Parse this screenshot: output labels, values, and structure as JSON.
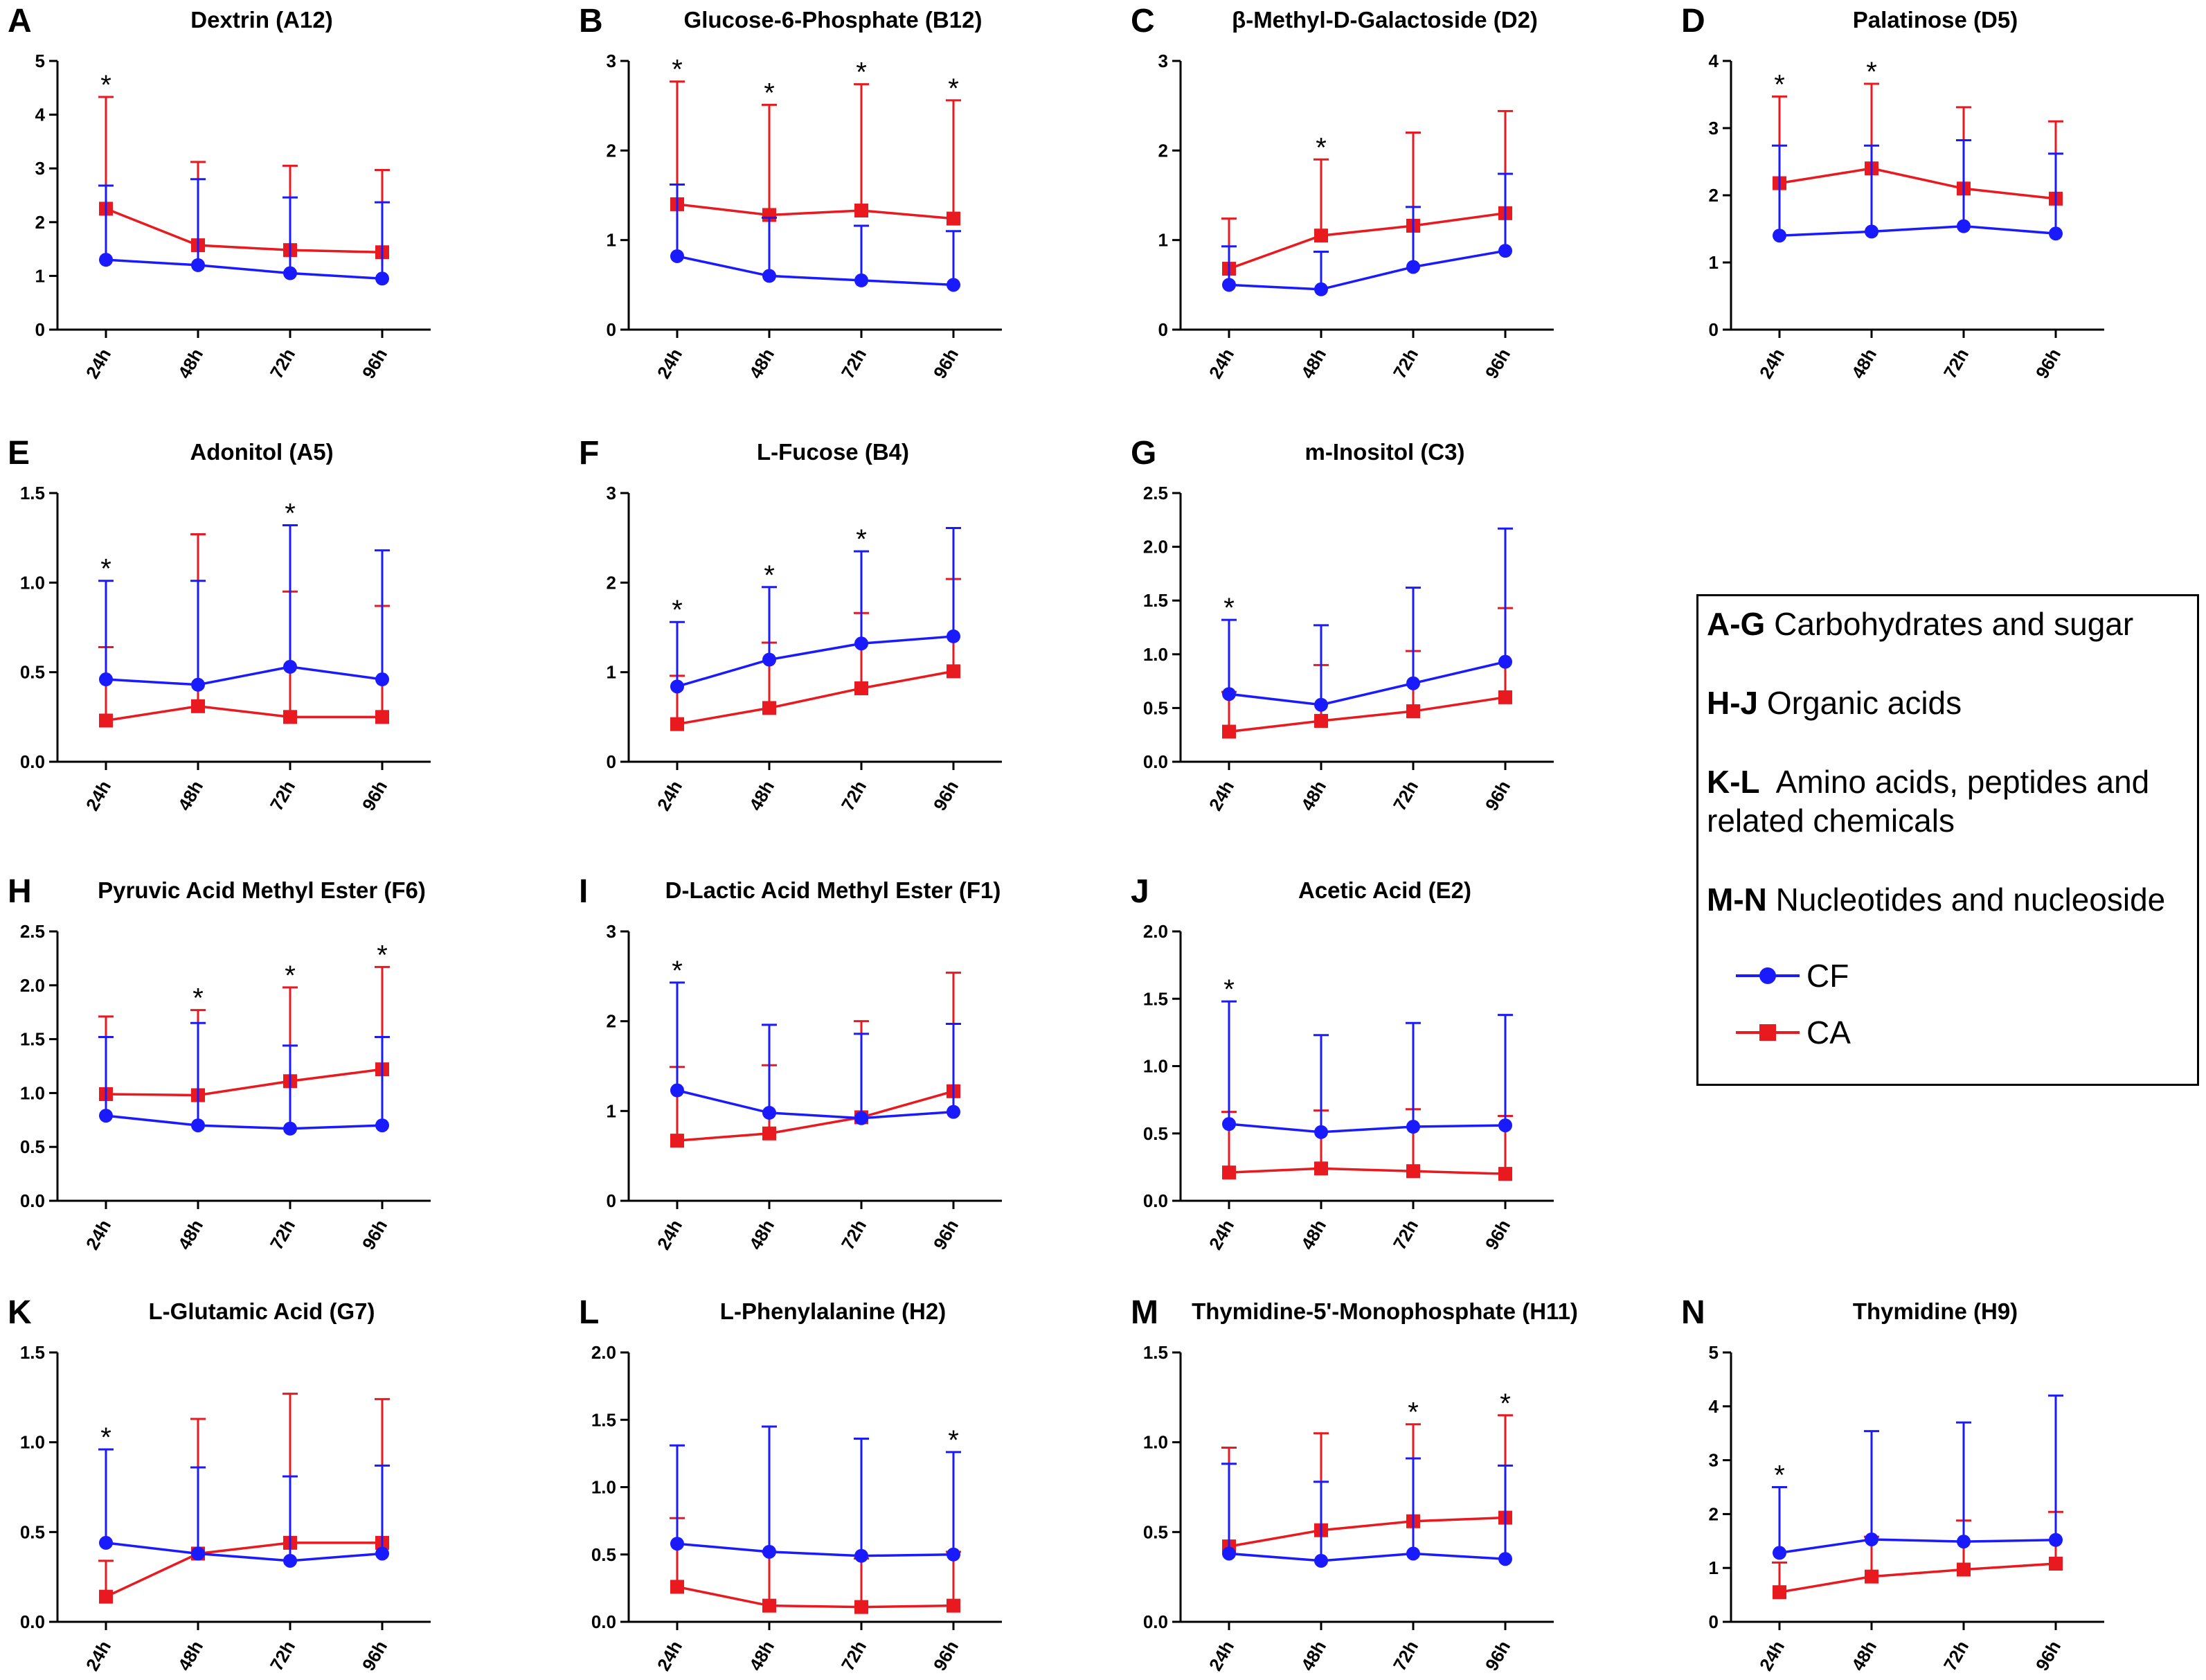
{
  "figure": {
    "x_categories": [
      "24h",
      "48h",
      "72h",
      "96h"
    ],
    "significance_marker": "*"
  },
  "legend": {
    "categories": [
      {
        "code": "A-G",
        "text": "Carbohydrates and sugar"
      },
      {
        "code": "H-J",
        "text": "Organic acids"
      },
      {
        "code": "K-L",
        "text": "Amino acids, peptides and",
        "text2": "related chemicals"
      },
      {
        "code": "M-N",
        "text": "Nucleotides and nucleoside"
      }
    ],
    "series": [
      {
        "name": "CF",
        "color": "#1a1aff",
        "marker": "circle"
      },
      {
        "name": "CA",
        "color": "#e8191f",
        "marker": "square"
      }
    ]
  },
  "chart_data": [
    {
      "label": "A",
      "type": "line",
      "title": "Dextrin (A12)",
      "ylim": [
        0,
        5
      ],
      "yticks": [
        "0",
        "1",
        "2",
        "3",
        "4",
        "5"
      ],
      "categories": [
        "24h",
        "48h",
        "72h",
        "96h"
      ],
      "series": [
        {
          "name": "CF",
          "values": [
            1.3,
            1.2,
            1.05,
            0.95
          ],
          "errors": [
            2.68,
            2.8,
            2.46,
            2.37
          ]
        },
        {
          "name": "CA",
          "values": [
            2.25,
            1.57,
            1.48,
            1.44
          ],
          "errors": [
            4.33,
            3.12,
            3.05,
            2.97
          ]
        }
      ],
      "stars": [
        0
      ]
    },
    {
      "label": "B",
      "type": "line",
      "title": "Glucose-6-Phosphate (B12)",
      "ylim": [
        0,
        3
      ],
      "yticks": [
        "0",
        "1",
        "2",
        "3"
      ],
      "categories": [
        "24h",
        "48h",
        "72h",
        "96h"
      ],
      "series": [
        {
          "name": "CF",
          "values": [
            0.82,
            0.6,
            0.55,
            0.5
          ],
          "errors": [
            1.62,
            1.25,
            1.16,
            1.1
          ]
        },
        {
          "name": "CA",
          "values": [
            1.4,
            1.28,
            1.33,
            1.24
          ],
          "errors": [
            2.77,
            2.51,
            2.74,
            2.56
          ]
        }
      ],
      "stars": [
        0,
        1,
        2,
        3
      ]
    },
    {
      "label": "C",
      "type": "line",
      "title": "β-Methyl-D-Galactoside (D2)",
      "ylim": [
        0,
        3
      ],
      "yticks": [
        "0",
        "1",
        "2",
        "3"
      ],
      "categories": [
        "24h",
        "48h",
        "72h",
        "96h"
      ],
      "series": [
        {
          "name": "CF",
          "values": [
            0.5,
            0.45,
            0.7,
            0.88
          ],
          "errors": [
            0.93,
            0.87,
            1.37,
            1.74
          ]
        },
        {
          "name": "CA",
          "values": [
            0.68,
            1.05,
            1.16,
            1.3
          ],
          "errors": [
            1.24,
            1.9,
            2.2,
            2.44
          ]
        }
      ],
      "stars": [
        1
      ]
    },
    {
      "label": "D",
      "type": "line",
      "title": "Palatinose (D5)",
      "ylim": [
        0,
        4
      ],
      "yticks": [
        "0",
        "1",
        "2",
        "3",
        "4"
      ],
      "categories": [
        "24h",
        "48h",
        "72h",
        "96h"
      ],
      "series": [
        {
          "name": "CF",
          "values": [
            1.4,
            1.46,
            1.54,
            1.43
          ],
          "errors": [
            2.74,
            2.74,
            2.82,
            2.62
          ]
        },
        {
          "name": "CA",
          "values": [
            2.18,
            2.4,
            2.1,
            1.95
          ],
          "errors": [
            3.47,
            3.66,
            3.31,
            3.1
          ]
        }
      ],
      "stars": [
        0,
        1
      ]
    },
    {
      "label": "E",
      "type": "line",
      "title": "Adonitol (A5)",
      "ylim": [
        0,
        1.5
      ],
      "yticks": [
        "0.0",
        "0.5",
        "1.0",
        "1.5"
      ],
      "categories": [
        "24h",
        "48h",
        "72h",
        "96h"
      ],
      "series": [
        {
          "name": "CF",
          "values": [
            0.46,
            0.43,
            0.53,
            0.46
          ],
          "errors": [
            1.01,
            1.01,
            1.32,
            1.18
          ]
        },
        {
          "name": "CA",
          "values": [
            0.23,
            0.31,
            0.25,
            0.25
          ],
          "errors": [
            0.64,
            1.27,
            0.95,
            0.87
          ]
        }
      ],
      "stars": [
        0,
        2
      ]
    },
    {
      "label": "F",
      "type": "line",
      "title": "L-Fucose (B4)",
      "ylim": [
        0,
        3
      ],
      "yticks": [
        "0",
        "1",
        "2",
        "3"
      ],
      "categories": [
        "24h",
        "48h",
        "72h",
        "96h"
      ],
      "series": [
        {
          "name": "CF",
          "values": [
            0.84,
            1.14,
            1.32,
            1.4
          ],
          "errors": [
            1.56,
            1.95,
            2.35,
            2.61
          ]
        },
        {
          "name": "CA",
          "values": [
            0.42,
            0.6,
            0.82,
            1.01
          ],
          "errors": [
            0.96,
            1.33,
            1.66,
            2.04
          ]
        }
      ],
      "stars": [
        0,
        1,
        2
      ]
    },
    {
      "label": "G",
      "type": "line",
      "title": "m-Inositol (C3)",
      "ylim": [
        0,
        2.5
      ],
      "yticks": [
        "0.0",
        "0.5",
        "1.0",
        "1.5",
        "2.0",
        "2.5"
      ],
      "categories": [
        "24h",
        "48h",
        "72h",
        "96h"
      ],
      "series": [
        {
          "name": "CF",
          "values": [
            0.63,
            0.53,
            0.73,
            0.93
          ],
          "errors": [
            1.32,
            1.27,
            1.62,
            2.17
          ]
        },
        {
          "name": "CA",
          "values": [
            0.28,
            0.38,
            0.47,
            0.6
          ],
          "errors": [
            0.65,
            0.9,
            1.03,
            1.43
          ]
        }
      ],
      "stars": [
        0
      ]
    },
    {
      "label": "H",
      "type": "line",
      "title": "Pyruvic Acid Methyl Ester (F6)",
      "ylim": [
        0,
        2.5
      ],
      "yticks": [
        "0.0",
        "0.5",
        "1.0",
        "1.5",
        "2.0",
        "2.5"
      ],
      "categories": [
        "24h",
        "48h",
        "72h",
        "96h"
      ],
      "series": [
        {
          "name": "CF",
          "values": [
            0.79,
            0.7,
            0.67,
            0.7
          ],
          "errors": [
            1.52,
            1.65,
            1.44,
            1.52
          ]
        },
        {
          "name": "CA",
          "values": [
            0.99,
            0.98,
            1.11,
            1.22
          ],
          "errors": [
            1.71,
            1.77,
            1.98,
            2.17
          ]
        }
      ],
      "stars": [
        1,
        2,
        3
      ]
    },
    {
      "label": "I",
      "type": "line",
      "title": "D-Lactic Acid Methyl Ester (F1)",
      "ylim": [
        0,
        3
      ],
      "yticks": [
        "0",
        "1",
        "2",
        "3"
      ],
      "categories": [
        "24h",
        "48h",
        "72h",
        "96h"
      ],
      "series": [
        {
          "name": "CF",
          "values": [
            1.23,
            0.98,
            0.92,
            0.99
          ],
          "errors": [
            2.43,
            1.96,
            1.86,
            1.97
          ]
        },
        {
          "name": "CA",
          "values": [
            0.67,
            0.75,
            0.93,
            1.22
          ],
          "errors": [
            1.49,
            1.51,
            2.0,
            2.54
          ]
        }
      ],
      "stars": [
        0
      ]
    },
    {
      "label": "J",
      "type": "line",
      "title": "Acetic Acid (E2)",
      "ylim": [
        0,
        2.0
      ],
      "yticks": [
        "0.0",
        "0.5",
        "1.0",
        "1.5",
        "2.0"
      ],
      "categories": [
        "24h",
        "48h",
        "72h",
        "96h"
      ],
      "series": [
        {
          "name": "CF",
          "values": [
            0.57,
            0.51,
            0.55,
            0.56
          ],
          "errors": [
            1.48,
            1.23,
            1.32,
            1.38
          ]
        },
        {
          "name": "CA",
          "values": [
            0.21,
            0.24,
            0.22,
            0.2
          ],
          "errors": [
            0.66,
            0.67,
            0.68,
            0.63
          ]
        }
      ],
      "stars": [
        0
      ]
    },
    {
      "label": "K",
      "type": "line",
      "title": "L-Glutamic Acid (G7)",
      "ylim": [
        0,
        1.5
      ],
      "yticks": [
        "0.0",
        "0.5",
        "1.0",
        "1.5"
      ],
      "categories": [
        "24h",
        "48h",
        "72h",
        "96h"
      ],
      "series": [
        {
          "name": "CF",
          "values": [
            0.44,
            0.38,
            0.34,
            0.38
          ],
          "errors": [
            0.96,
            0.86,
            0.81,
            0.87
          ]
        },
        {
          "name": "CA",
          "values": [
            0.14,
            0.38,
            0.44,
            0.44
          ],
          "errors": [
            0.34,
            1.13,
            1.27,
            1.24
          ]
        }
      ],
      "stars": [
        0
      ]
    },
    {
      "label": "L",
      "type": "line",
      "title": "L-Phenylalanine (H2)",
      "ylim": [
        0,
        2.0
      ],
      "yticks": [
        "0.0",
        "0.5",
        "1.0",
        "1.5",
        "2.0"
      ],
      "categories": [
        "24h",
        "48h",
        "72h",
        "96h"
      ],
      "series": [
        {
          "name": "CF",
          "values": [
            0.58,
            0.52,
            0.49,
            0.5
          ],
          "errors": [
            1.31,
            1.45,
            1.36,
            1.26
          ]
        },
        {
          "name": "CA",
          "values": [
            0.26,
            0.12,
            0.11,
            0.12
          ],
          "errors": [
            0.77,
            0.52,
            0.47,
            0.52
          ]
        }
      ],
      "stars": [
        3
      ]
    },
    {
      "label": "M",
      "type": "line",
      "title": "Thymidine-5'-Monophosphate (H11)",
      "ylim": [
        0,
        1.5
      ],
      "yticks": [
        "0.0",
        "0.5",
        "1.0",
        "1.5"
      ],
      "categories": [
        "24h",
        "48h",
        "72h",
        "96h"
      ],
      "series": [
        {
          "name": "CF",
          "values": [
            0.38,
            0.34,
            0.38,
            0.35
          ],
          "errors": [
            0.88,
            0.78,
            0.91,
            0.87
          ]
        },
        {
          "name": "CA",
          "values": [
            0.42,
            0.51,
            0.56,
            0.58
          ],
          "errors": [
            0.97,
            1.05,
            1.1,
            1.15
          ]
        }
      ],
      "stars": [
        2,
        3
      ]
    },
    {
      "label": "N",
      "type": "line",
      "title": "Thymidine (H9)",
      "ylim": [
        0,
        5
      ],
      "yticks": [
        "0",
        "1",
        "2",
        "3",
        "4",
        "5"
      ],
      "categories": [
        "24h",
        "48h",
        "72h",
        "96h"
      ],
      "series": [
        {
          "name": "CF",
          "values": [
            1.28,
            1.53,
            1.49,
            1.52
          ],
          "errors": [
            2.5,
            3.54,
            3.7,
            4.2
          ]
        },
        {
          "name": "CA",
          "values": [
            0.55,
            0.84,
            0.97,
            1.08
          ],
          "errors": [
            1.1,
            1.58,
            1.88,
            2.04
          ]
        }
      ],
      "stars": [
        0
      ]
    }
  ]
}
